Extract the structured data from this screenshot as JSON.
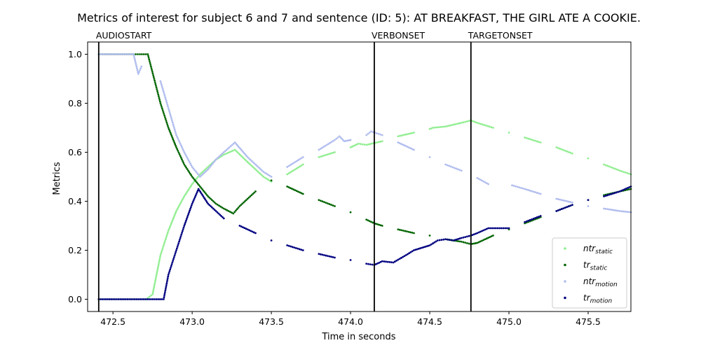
{
  "chart_data": {
    "type": "scatter",
    "title": "Metrics of interest for subject 6 and 7 and sentence (ID: 5): AT BREAKFAST, THE GIRL ATE A COOKIE.",
    "xlabel": "Time in seconds",
    "ylabel": "Metrics",
    "xlim": [
      472.34,
      475.77
    ],
    "ylim": [
      -0.05,
      1.05
    ],
    "xticks": [
      472.5,
      473.0,
      473.5,
      474.0,
      474.5,
      475.0,
      475.5
    ],
    "yticks": [
      0.0,
      0.2,
      0.4,
      0.6,
      0.8,
      1.0
    ],
    "grid": false,
    "legend_position": "lower-right",
    "events": [
      {
        "label": "AUDIOSTART",
        "x": 472.41
      },
      {
        "label": "VERBONSET",
        "x": 474.15
      },
      {
        "label": "TARGETONSET",
        "x": 474.76
      }
    ],
    "series": [
      {
        "name": "ntr",
        "subscript": "static",
        "color": "#90ee90",
        "points": [
          [
            472.41,
            0.0
          ],
          [
            472.66,
            0.0
          ],
          [
            472.71,
            0.0
          ],
          [
            472.75,
            0.02
          ],
          [
            472.8,
            0.18
          ],
          [
            472.85,
            0.28
          ],
          [
            472.9,
            0.36
          ],
          [
            472.95,
            0.42
          ],
          [
            473.0,
            0.47
          ],
          [
            473.05,
            0.51
          ],
          [
            473.1,
            0.54
          ],
          [
            473.15,
            0.57
          ],
          [
            473.2,
            0.59
          ],
          [
            473.27,
            0.61
          ],
          [
            473.35,
            0.56
          ],
          [
            473.45,
            0.5
          ],
          [
            473.5,
            0.48
          ],
          [
            473.6,
            0.51
          ],
          [
            473.7,
            0.55
          ],
          [
            473.8,
            0.58
          ],
          [
            473.9,
            0.6
          ],
          [
            474.0,
            0.62
          ],
          [
            474.05,
            0.635
          ],
          [
            474.1,
            0.63
          ],
          [
            474.2,
            0.645
          ],
          [
            474.3,
            0.665
          ],
          [
            474.4,
            0.68
          ],
          [
            474.5,
            0.695
          ],
          [
            474.52,
            0.7
          ],
          [
            474.6,
            0.705
          ],
          [
            474.7,
            0.72
          ],
          [
            474.76,
            0.73
          ],
          [
            474.8,
            0.72
          ],
          [
            474.9,
            0.7
          ],
          [
            475.0,
            0.68
          ],
          [
            475.1,
            0.66
          ],
          [
            475.2,
            0.64
          ],
          [
            475.3,
            0.62
          ],
          [
            475.4,
            0.595
          ],
          [
            475.5,
            0.575
          ],
          [
            475.6,
            0.55
          ],
          [
            475.7,
            0.525
          ],
          [
            475.77,
            0.51
          ]
        ]
      },
      {
        "name": "tr",
        "subscript": "static",
        "color": "#006400",
        "points": [
          [
            472.41,
            1.0
          ],
          [
            472.63,
            1.0
          ],
          [
            472.67,
            1.0
          ],
          [
            472.72,
            1.0
          ],
          [
            472.76,
            0.9
          ],
          [
            472.8,
            0.8
          ],
          [
            472.85,
            0.7
          ],
          [
            472.9,
            0.62
          ],
          [
            472.95,
            0.55
          ],
          [
            473.0,
            0.5
          ],
          [
            473.05,
            0.46
          ],
          [
            473.1,
            0.42
          ],
          [
            473.15,
            0.39
          ],
          [
            473.2,
            0.37
          ],
          [
            473.26,
            0.35
          ],
          [
            473.3,
            0.38
          ],
          [
            473.4,
            0.44
          ],
          [
            473.5,
            0.485
          ],
          [
            473.6,
            0.46
          ],
          [
            473.7,
            0.43
          ],
          [
            473.8,
            0.405
          ],
          [
            473.9,
            0.38
          ],
          [
            474.0,
            0.355
          ],
          [
            474.1,
            0.325
          ],
          [
            474.15,
            0.31
          ],
          [
            474.2,
            0.3
          ],
          [
            474.3,
            0.285
          ],
          [
            474.4,
            0.27
          ],
          [
            474.5,
            0.26
          ],
          [
            474.6,
            0.245
          ],
          [
            474.7,
            0.235
          ],
          [
            474.76,
            0.225
          ],
          [
            474.8,
            0.23
          ],
          [
            474.9,
            0.26
          ],
          [
            475.0,
            0.285
          ],
          [
            475.1,
            0.31
          ],
          [
            475.2,
            0.335
          ],
          [
            475.3,
            0.36
          ],
          [
            475.4,
            0.385
          ],
          [
            475.5,
            0.405
          ],
          [
            475.6,
            0.425
          ],
          [
            475.7,
            0.44
          ],
          [
            475.77,
            0.45
          ]
        ]
      },
      {
        "name": "ntr",
        "subscript": "motion",
        "color": "#b0bcee",
        "points": [
          [
            472.41,
            1.0
          ],
          [
            472.63,
            1.0
          ],
          [
            472.66,
            0.92
          ],
          [
            472.68,
            0.95
          ],
          [
            472.8,
            0.89
          ],
          [
            472.85,
            0.78
          ],
          [
            472.9,
            0.67
          ],
          [
            472.95,
            0.6
          ],
          [
            473.0,
            0.54
          ],
          [
            473.05,
            0.5
          ],
          [
            473.1,
            0.53
          ],
          [
            473.15,
            0.57
          ],
          [
            473.2,
            0.6
          ],
          [
            473.27,
            0.64
          ],
          [
            473.35,
            0.58
          ],
          [
            473.45,
            0.52
          ],
          [
            473.5,
            0.5
          ],
          [
            473.6,
            0.54
          ],
          [
            473.7,
            0.58
          ],
          [
            473.8,
            0.61
          ],
          [
            473.9,
            0.65
          ],
          [
            473.93,
            0.665
          ],
          [
            473.96,
            0.645
          ],
          [
            474.0,
            0.65
          ],
          [
            474.1,
            0.67
          ],
          [
            474.13,
            0.685
          ],
          [
            474.2,
            0.67
          ],
          [
            474.3,
            0.64
          ],
          [
            474.4,
            0.61
          ],
          [
            474.5,
            0.58
          ],
          [
            474.6,
            0.55
          ],
          [
            474.7,
            0.525
          ],
          [
            474.8,
            0.495
          ],
          [
            474.87,
            0.47
          ],
          [
            475.02,
            0.465
          ],
          [
            475.1,
            0.45
          ],
          [
            475.2,
            0.43
          ],
          [
            475.3,
            0.41
          ],
          [
            475.4,
            0.395
          ],
          [
            475.5,
            0.38
          ],
          [
            475.6,
            0.37
          ],
          [
            475.7,
            0.36
          ],
          [
            475.77,
            0.355
          ]
        ]
      },
      {
        "name": "tr",
        "subscript": "motion",
        "color": "#000080",
        "points": [
          [
            472.41,
            0.0
          ],
          [
            472.66,
            0.0
          ],
          [
            472.82,
            0.0
          ],
          [
            472.85,
            0.1
          ],
          [
            472.9,
            0.2
          ],
          [
            472.95,
            0.3
          ],
          [
            473.0,
            0.39
          ],
          [
            473.04,
            0.45
          ],
          [
            473.1,
            0.39
          ],
          [
            473.2,
            0.33
          ],
          [
            473.3,
            0.3
          ],
          [
            473.4,
            0.27
          ],
          [
            473.5,
            0.24
          ],
          [
            473.6,
            0.22
          ],
          [
            473.7,
            0.2
          ],
          [
            473.8,
            0.185
          ],
          [
            473.9,
            0.17
          ],
          [
            474.0,
            0.16
          ],
          [
            474.1,
            0.145
          ],
          [
            474.15,
            0.14
          ],
          [
            474.2,
            0.155
          ],
          [
            474.27,
            0.15
          ],
          [
            474.35,
            0.18
          ],
          [
            474.4,
            0.2
          ],
          [
            474.45,
            0.21
          ],
          [
            474.5,
            0.22
          ],
          [
            474.55,
            0.24
          ],
          [
            474.6,
            0.245
          ],
          [
            474.65,
            0.24
          ],
          [
            474.7,
            0.25
          ],
          [
            474.76,
            0.26
          ],
          [
            474.8,
            0.27
          ],
          [
            474.87,
            0.29
          ],
          [
            475.0,
            0.29
          ],
          [
            475.1,
            0.315
          ],
          [
            475.2,
            0.34
          ],
          [
            475.3,
            0.36
          ],
          [
            475.4,
            0.385
          ],
          [
            475.5,
            0.405
          ],
          [
            475.6,
            0.42
          ],
          [
            475.7,
            0.44
          ],
          [
            475.77,
            0.46
          ]
        ]
      }
    ]
  }
}
